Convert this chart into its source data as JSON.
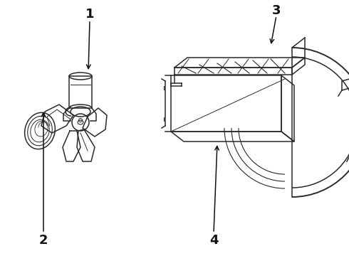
{
  "background_color": "#ffffff",
  "line_color": "#2a2a2a",
  "label_color": "#111111",
  "label_fontsize": 13,
  "lw": 1.1
}
